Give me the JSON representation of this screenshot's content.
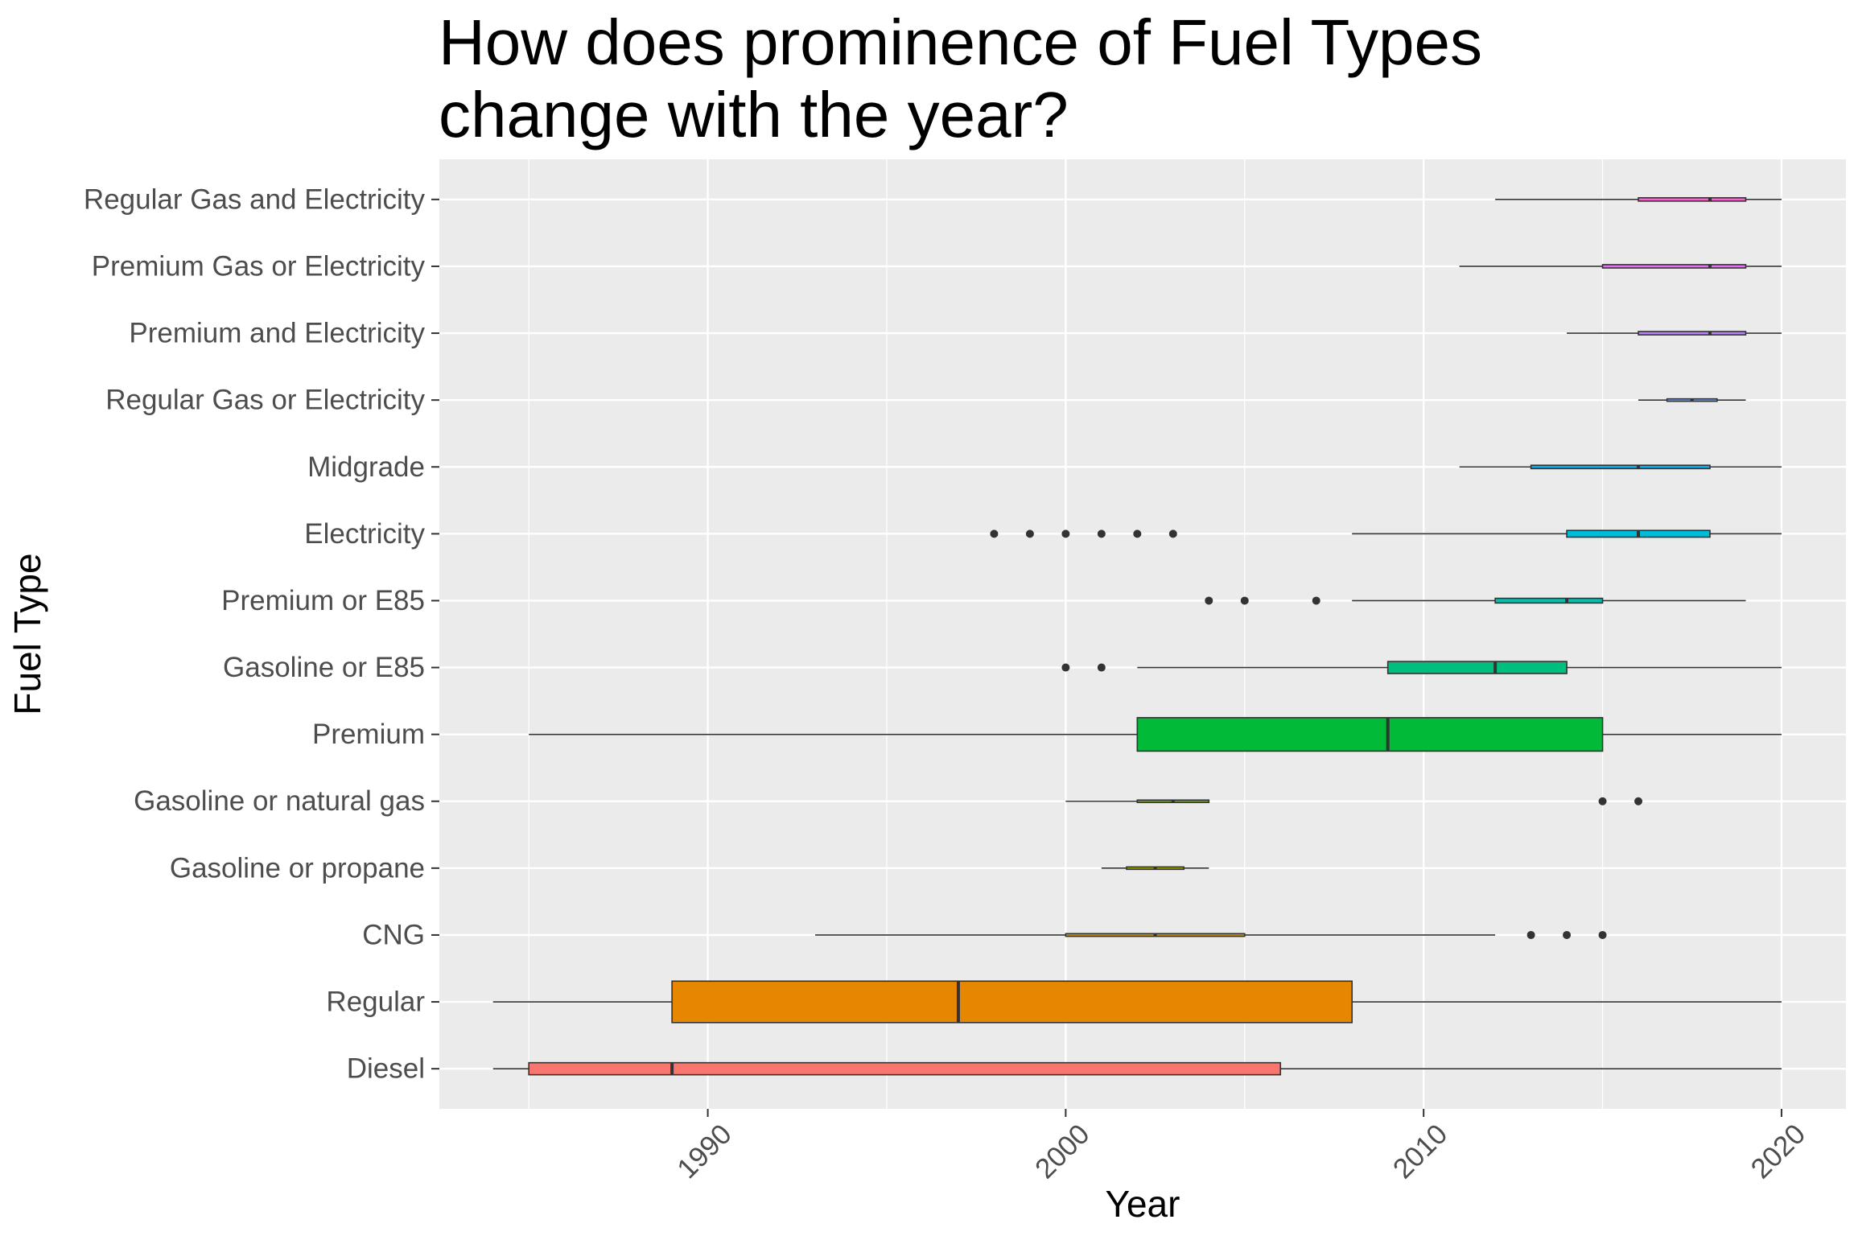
{
  "chart_data": {
    "type": "boxplot",
    "orientation": "horizontal",
    "title_lines": [
      "How does prominence of Fuel Types",
      "change with the year?"
    ],
    "xlabel": "Year",
    "ylabel": "Fuel Type",
    "xlim": [
      1982.5,
      2021.8
    ],
    "xticks": [
      1990,
      2000,
      2010,
      2020
    ],
    "grid": true,
    "legend": "none",
    "categories": [
      {
        "name": "Diesel",
        "color": "#F8766D",
        "whisker_low": 1984,
        "q1": 1985,
        "median": 1989,
        "q3": 2006,
        "whisker_high": 2020,
        "outliers": [],
        "box_height": 0.18
      },
      {
        "name": "Regular",
        "color": "#E58700",
        "whisker_low": 1984,
        "q1": 1989,
        "median": 1997,
        "q3": 2008,
        "whisker_high": 2020,
        "outliers": [],
        "box_height": 0.62
      },
      {
        "name": "CNG",
        "color": "#C99800",
        "whisker_low": 1993,
        "q1": 2000,
        "median": 2002.5,
        "q3": 2005,
        "whisker_high": 2012,
        "outliers": [
          2013,
          2014,
          2015
        ],
        "box_height": 0.04
      },
      {
        "name": "Gasoline or propane",
        "color": "#A3A500",
        "whisker_low": 2001,
        "q1": 2001.7,
        "median": 2002.5,
        "q3": 2003.3,
        "whisker_high": 2004,
        "outliers": [],
        "box_height": 0.03
      },
      {
        "name": "Gasoline or natural gas",
        "color": "#6BB100",
        "whisker_low": 2000,
        "q1": 2002,
        "median": 2003,
        "q3": 2004,
        "whisker_high": 2004,
        "outliers": [
          2015,
          2016
        ],
        "box_height": 0.03
      },
      {
        "name": "Premium",
        "color": "#00BA38",
        "whisker_low": 1985,
        "q1": 2002,
        "median": 2009,
        "q3": 2015,
        "whisker_high": 2020,
        "outliers": [],
        "box_height": 0.5
      },
      {
        "name": "Gasoline or E85",
        "color": "#00BF7D",
        "whisker_low": 2002,
        "q1": 2009,
        "median": 2012,
        "q3": 2014,
        "whisker_high": 2020,
        "outliers": [
          2000,
          2001
        ],
        "box_height": 0.18
      },
      {
        "name": "Premium or E85",
        "color": "#00C0AF",
        "whisker_low": 2008,
        "q1": 2012,
        "median": 2014,
        "q3": 2015,
        "whisker_high": 2019,
        "outliers": [
          2004,
          2005,
          2007
        ],
        "box_height": 0.07
      },
      {
        "name": "Electricity",
        "color": "#00BCD8",
        "whisker_low": 2008,
        "q1": 2014,
        "median": 2016,
        "q3": 2018,
        "whisker_high": 2020,
        "outliers": [
          1998,
          1999,
          2000,
          2001,
          2002,
          2003
        ],
        "box_height": 0.1
      },
      {
        "name": "Midgrade",
        "color": "#00B0F6",
        "whisker_low": 2011,
        "q1": 2013,
        "median": 2016,
        "q3": 2018,
        "whisker_high": 2020,
        "outliers": [],
        "box_height": 0.05
      },
      {
        "name": "Regular Gas or Electricity",
        "color": "#619CFF",
        "whisker_low": 2016,
        "q1": 2016.8,
        "median": 2017.5,
        "q3": 2018.2,
        "whisker_high": 2019,
        "outliers": [],
        "box_height": 0.02
      },
      {
        "name": "Premium and Electricity",
        "color": "#B983FF",
        "whisker_low": 2014,
        "q1": 2016,
        "median": 2018,
        "q3": 2019,
        "whisker_high": 2020,
        "outliers": [],
        "box_height": 0.05
      },
      {
        "name": "Premium Gas or Electricity",
        "color": "#E76BF3",
        "whisker_low": 2011,
        "q1": 2015,
        "median": 2018,
        "q3": 2019,
        "whisker_high": 2020,
        "outliers": [],
        "box_height": 0.05
      },
      {
        "name": "Regular Gas and Electricity",
        "color": "#FD61D1",
        "whisker_low": 2012,
        "q1": 2016,
        "median": 2018,
        "q3": 2019,
        "whisker_high": 2020,
        "outliers": [],
        "box_height": 0.05
      }
    ]
  }
}
